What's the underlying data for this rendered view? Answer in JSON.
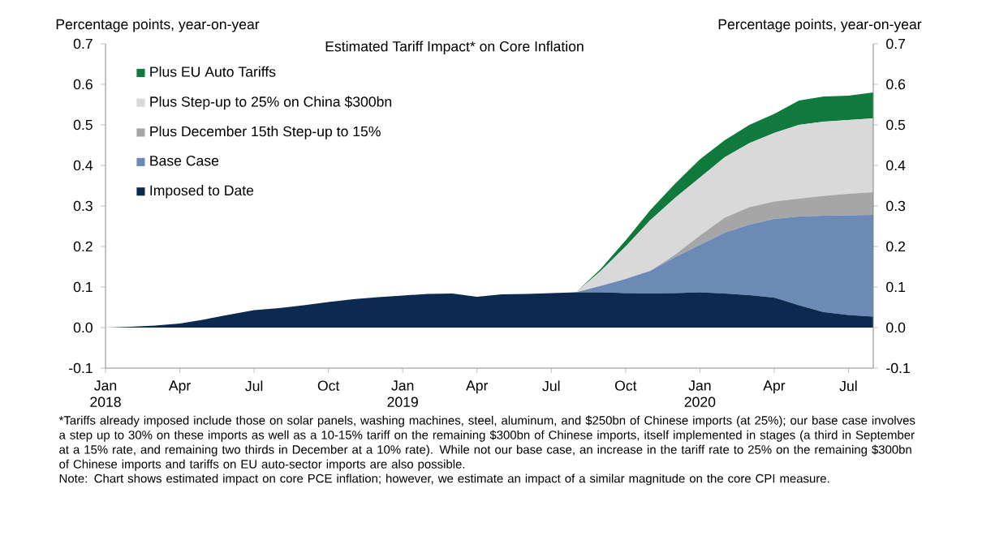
{
  "chart_data": {
    "type": "area",
    "title": "Estimated Tariff Impact* on Core Inflation",
    "ylabel": "Percentage points, year-on-year",
    "y2label": "Percentage points, year-on-year",
    "stacked": true,
    "legend": "top left",
    "x": [
      "2018-01",
      "2018-02",
      "2018-03",
      "2018-04",
      "2018-05",
      "2018-06",
      "2018-07",
      "2018-08",
      "2018-09",
      "2018-10",
      "2018-11",
      "2018-12",
      "2019-01",
      "2019-02",
      "2019-03",
      "2019-04",
      "2019-05",
      "2019-06",
      "2019-07",
      "2019-08",
      "2019-09",
      "2019-10",
      "2019-11",
      "2019-12",
      "2020-01",
      "2020-02",
      "2020-03",
      "2020-04",
      "2020-05",
      "2020-06",
      "2020-07",
      "2020-08"
    ],
    "series": [
      {
        "name": "Imposed to Date",
        "color": "#0c2a4f",
        "values": [
          0.0,
          0.002,
          0.005,
          0.01,
          0.02,
          0.032,
          0.043,
          0.048,
          0.055,
          0.063,
          0.07,
          0.075,
          0.079,
          0.083,
          0.084,
          0.076,
          0.082,
          0.083,
          0.085,
          0.087,
          0.087,
          0.085,
          0.084,
          0.085,
          0.087,
          0.084,
          0.08,
          0.074,
          0.055,
          0.038,
          0.031,
          0.027
        ]
      },
      {
        "name": "Base Case",
        "color": "#6b8ab5",
        "values": [
          0,
          0,
          0,
          0,
          0,
          0,
          0,
          0,
          0,
          0,
          0,
          0,
          0,
          0,
          0,
          0,
          0,
          0,
          0,
          0,
          0.016,
          0.035,
          0.056,
          0.089,
          0.117,
          0.15,
          0.174,
          0.194,
          0.219,
          0.238,
          0.246,
          0.251
        ]
      },
      {
        "name": "Plus December 15th Step-up to 15%",
        "color": "#a6a6a6",
        "values": [
          0,
          0,
          0,
          0,
          0,
          0,
          0,
          0,
          0,
          0,
          0,
          0,
          0,
          0,
          0,
          0,
          0,
          0,
          0,
          0,
          0,
          0,
          0,
          0.006,
          0.023,
          0.037,
          0.043,
          0.043,
          0.044,
          0.049,
          0.053,
          0.056
        ]
      },
      {
        "name": "Plus Step-up to 25% on China $300bn",
        "color": "#d9d9d9",
        "values": [
          0,
          0,
          0,
          0,
          0,
          0,
          0,
          0,
          0,
          0,
          0,
          0,
          0,
          0,
          0,
          0,
          0,
          0,
          0,
          0,
          0.037,
          0.08,
          0.125,
          0.14,
          0.143,
          0.149,
          0.158,
          0.169,
          0.182,
          0.183,
          0.182,
          0.182
        ]
      },
      {
        "name": "Plus EU Auto Tariffs",
        "color": "#107a3c",
        "values": [
          0,
          0,
          0,
          0,
          0,
          0,
          0,
          0,
          0,
          0,
          0,
          0,
          0,
          0,
          0,
          0,
          0,
          0,
          0,
          0,
          0.005,
          0.015,
          0.025,
          0.035,
          0.045,
          0.042,
          0.045,
          0.047,
          0.06,
          0.062,
          0.06,
          0.064
        ]
      }
    ],
    "xlim": [
      "2018-01",
      "2020-08"
    ],
    "xticks": [
      {
        "value": "2018-01",
        "label": "Jan 2018"
      },
      {
        "value": "2018-04",
        "label": "Apr"
      },
      {
        "value": "2018-07",
        "label": "Jul"
      },
      {
        "value": "2018-10",
        "label": "Oct"
      },
      {
        "value": "2019-01",
        "label": "Jan 2019"
      },
      {
        "value": "2019-04",
        "label": "Apr"
      },
      {
        "value": "2019-07",
        "label": "Jul"
      },
      {
        "value": "2019-10",
        "label": "Oct"
      },
      {
        "value": "2020-01",
        "label": "Jan 2020"
      },
      {
        "value": "2020-04",
        "label": "Apr"
      },
      {
        "value": "2020-07",
        "label": "Jul"
      }
    ],
    "ylim": [
      -0.1,
      0.7
    ],
    "yticks": [
      -0.1,
      {
        "value": 0,
        "label": "0.0"
      },
      0.1,
      0.2,
      0.3,
      0.4,
      0.5,
      0.6,
      0.7
    ],
    "y2lim": [
      -0.1,
      0.7
    ],
    "y2ticks": [
      -0.1,
      {
        "value": 0,
        "label": "0.0"
      },
      0.1,
      0.2,
      0.3,
      0.4,
      0.5,
      0.6,
      0.7
    ],
    "annotations": [
      "*Tariffs already imposed include those on solar panels, washing machines, steel, aluminum, and $250bn of Chinese imports (at 25%); our base case involves a step up to 30% on these imports as well as a 10-15% tariff on the remaining $300bn of Chinese imports, itself implemented in stages (a third in September at a 15% rate, and remaining two thirds in December at a 10% rate). While not our base case, an increase in the tariff rate to 25% on the remaining $300bn of Chinese imports and tariffs on EU auto-sector imports are also possible.",
      "Note: Chart shows estimated impact on core PCE inflation; however, we estimate an impact of a similar magnitude on the core CPI measure."
    ]
  }
}
